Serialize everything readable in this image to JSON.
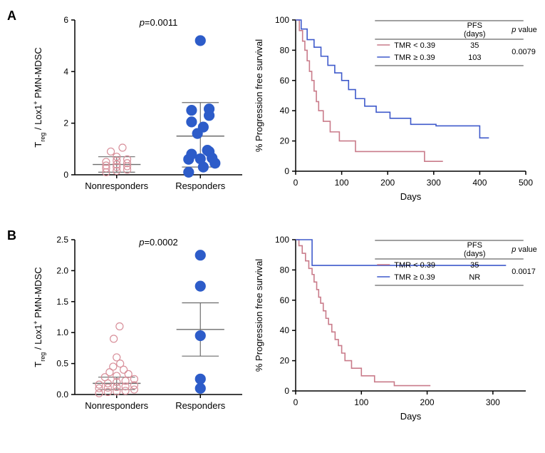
{
  "panelA": {
    "label": "A",
    "scatter": {
      "type": "scatter",
      "ylabel_pre": "T",
      "ylabel_sub1": "reg",
      "ylabel_mid": " / Lox1",
      "ylabel_sup": "+",
      "ylabel_post": " PMN-MDSC",
      "ylabel_fontsize": 13,
      "ylim": [
        0,
        6
      ],
      "ytick_step": 2,
      "p_value": "p=0.0011",
      "p_fontsize": 13,
      "groups": [
        {
          "name": "Nonresponders",
          "marker_color": "#d88f9a",
          "marker_fill": "none",
          "marker_size": 5,
          "points_y": [
            0.1,
            0.15,
            0.2,
            0.25,
            0.3,
            0.33,
            0.36,
            0.4,
            0.45,
            0.5,
            0.55,
            0.6,
            0.7,
            0.9,
            1.05
          ],
          "jitter_x": [
            -0.18,
            0.0,
            0.18,
            -0.18,
            0.0,
            0.18,
            -0.18,
            0.0,
            0.18,
            -0.18,
            0.0,
            0.18,
            0.0,
            -0.1,
            0.1
          ],
          "mean": 0.4,
          "err_lo": 0.1,
          "err_hi": 0.7
        },
        {
          "name": "Responders",
          "marker_color": "#2d5cc9",
          "marker_fill": "#2d5cc9",
          "marker_size": 7,
          "points_y": [
            0.1,
            0.3,
            0.45,
            0.6,
            0.62,
            0.65,
            0.8,
            0.9,
            0.95,
            1.6,
            1.85,
            2.05,
            2.3,
            2.5,
            2.55,
            5.2
          ],
          "jitter_x": [
            -0.2,
            0.05,
            0.25,
            -0.2,
            0.0,
            0.2,
            -0.15,
            0.15,
            0.12,
            -0.05,
            0.05,
            -0.15,
            0.15,
            -0.15,
            0.15,
            0.0
          ],
          "mean": 1.5,
          "err_lo": 0.3,
          "err_hi": 2.8
        }
      ],
      "axis_color": "#000000",
      "errbar_color": "#6d6d6d"
    },
    "km": {
      "type": "line",
      "xlabel": "Days",
      "ylabel": "% Progression free survival",
      "xlim": [
        0,
        500
      ],
      "xtick_step": 100,
      "ylim": [
        0,
        100
      ],
      "ytick_step": 20,
      "axis_color": "#000000",
      "legend_title_pfs": "PFS",
      "legend_title_days": "(days)",
      "legend_title_p": "p value",
      "legend_p_ital": "p",
      "series": [
        {
          "label": "TMR < 0.39",
          "color": "#c97b8a",
          "pfs": "35",
          "pvalue": "0.0079",
          "points": [
            [
              0,
              100
            ],
            [
              8,
              93
            ],
            [
              15,
              86
            ],
            [
              20,
              80
            ],
            [
              25,
              73
            ],
            [
              30,
              66
            ],
            [
              35,
              60
            ],
            [
              40,
              53
            ],
            [
              45,
              46
            ],
            [
              50,
              40
            ],
            [
              60,
              33
            ],
            [
              75,
              26
            ],
            [
              95,
              20
            ],
            [
              130,
              13
            ],
            [
              280,
              6.5
            ],
            [
              320,
              6.5
            ],
            [
              320,
              6.5
            ]
          ]
        },
        {
          "label": "TMR ≥ 0.39",
          "color": "#3f5acb",
          "pfs": "103",
          "pvalue": "",
          "points": [
            [
              0,
              100
            ],
            [
              12,
              94
            ],
            [
              25,
              87
            ],
            [
              40,
              82
            ],
            [
              55,
              76
            ],
            [
              70,
              70
            ],
            [
              85,
              65
            ],
            [
              100,
              60
            ],
            [
              115,
              54
            ],
            [
              130,
              48
            ],
            [
              150,
              43
            ],
            [
              175,
              39
            ],
            [
              205,
              35
            ],
            [
              250,
              31
            ],
            [
              305,
              30
            ],
            [
              370,
              30
            ],
            [
              400,
              22
            ],
            [
              420,
              22
            ],
            [
              420,
              22
            ]
          ]
        }
      ]
    }
  },
  "panelB": {
    "label": "B",
    "scatter": {
      "type": "scatter",
      "ylabel_pre": "T",
      "ylabel_sub1": "reg",
      "ylabel_mid": " / Lox1",
      "ylabel_sup": "+",
      "ylabel_post": " PMN-MDSC",
      "ylabel_fontsize": 13,
      "ylim": [
        0,
        2.5
      ],
      "ytick_step": 0.5,
      "p_value": "p=0.0002",
      "p_fontsize": 13,
      "groups": [
        {
          "name": "Nonresponders",
          "marker_color": "#d88f9a",
          "marker_fill": "none",
          "marker_size": 5,
          "points_y": [
            0.02,
            0.04,
            0.05,
            0.06,
            0.08,
            0.1,
            0.11,
            0.12,
            0.13,
            0.15,
            0.16,
            0.18,
            0.2,
            0.22,
            0.25,
            0.28,
            0.3,
            0.33,
            0.36,
            0.4,
            0.45,
            0.5,
            0.6,
            0.9,
            1.1
          ],
          "jitter_x": [
            -0.3,
            -0.15,
            0.0,
            0.15,
            0.3,
            -0.3,
            -0.15,
            0.0,
            0.15,
            0.3,
            -0.3,
            -0.15,
            0.0,
            0.15,
            0.3,
            -0.2,
            0.0,
            0.2,
            -0.12,
            0.12,
            -0.06,
            0.06,
            0.0,
            -0.05,
            0.05
          ],
          "mean": 0.18,
          "err_lo": 0.08,
          "err_hi": 0.28
        },
        {
          "name": "Responders",
          "marker_color": "#2d5cc9",
          "marker_fill": "#2d5cc9",
          "marker_size": 7,
          "points_y": [
            0.1,
            0.25,
            0.95,
            1.75,
            2.25
          ],
          "jitter_x": [
            0.0,
            0.0,
            0.0,
            0.0,
            0.0
          ],
          "mean": 1.05,
          "err_lo": 0.62,
          "err_hi": 1.48
        }
      ],
      "axis_color": "#000000",
      "errbar_color": "#6d6d6d"
    },
    "km": {
      "type": "line",
      "xlabel": "Days",
      "ylabel": "% Progression free survival",
      "xlim": [
        0,
        350
      ],
      "xtick_step": 100,
      "ylim": [
        0,
        100
      ],
      "ytick_step": 20,
      "axis_color": "#000000",
      "legend_title_pfs": "PFS",
      "legend_title_days": "(days)",
      "legend_title_p": "p value",
      "legend_p_ital": "p",
      "series": [
        {
          "label": "TMR < 0.39",
          "color": "#c97b8a",
          "pfs": "35",
          "pvalue": "0.0017",
          "points": [
            [
              0,
              100
            ],
            [
              5,
              96
            ],
            [
              10,
              91
            ],
            [
              15,
              86
            ],
            [
              20,
              81
            ],
            [
              25,
              77
            ],
            [
              28,
              72
            ],
            [
              32,
              67
            ],
            [
              35,
              62
            ],
            [
              38,
              58
            ],
            [
              42,
              53
            ],
            [
              46,
              48
            ],
            [
              50,
              44
            ],
            [
              55,
              39
            ],
            [
              60,
              34
            ],
            [
              65,
              30
            ],
            [
              70,
              25
            ],
            [
              75,
              20
            ],
            [
              85,
              15
            ],
            [
              100,
              10
            ],
            [
              120,
              6
            ],
            [
              150,
              3.5
            ],
            [
              205,
              3.5
            ],
            [
              205,
              3.5
            ]
          ]
        },
        {
          "label": "TMR ≥ 0.39",
          "color": "#3f5acb",
          "pfs": "NR",
          "pvalue": "",
          "points": [
            [
              0,
              100
            ],
            [
              25,
              100
            ],
            [
              25,
              83
            ],
            [
              320,
              83
            ],
            [
              320,
              83
            ]
          ]
        }
      ]
    }
  }
}
